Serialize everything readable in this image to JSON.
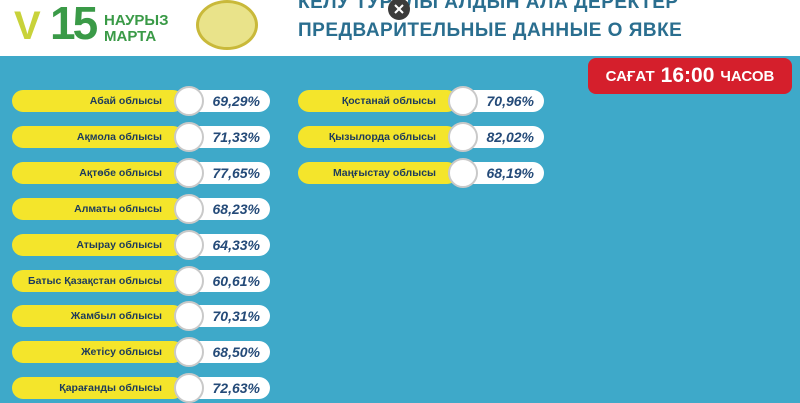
{
  "header": {
    "logo": {
      "number": "15",
      "line1": "НАУРЫЗ",
      "line2": "МАРТА"
    },
    "title_kz": "КЕЛУ ТУРАЛЫ АЛДЫН АЛА ДЕРЕКТЕР",
    "title_ru": "ПРЕДВАРИТЕЛЬНЫЕ ДАННЫЕ О ЯВКЕ"
  },
  "time_badge": {
    "prefix": "САҒАТ",
    "time": "16:00",
    "suffix": "ЧАСОВ"
  },
  "columns": [
    [
      {
        "region": "Абай облысы",
        "turnout": "69,29%"
      },
      {
        "region": "Ақмола облысы",
        "turnout": "71,33%"
      },
      {
        "region": "Ақтөбе облысы",
        "turnout": "77,65%"
      },
      {
        "region": "Алматы облысы",
        "turnout": "68,23%"
      },
      {
        "region": "Атырау облысы",
        "turnout": "64,33%"
      },
      {
        "region": "Батыс Қазақстан облысы",
        "turnout": "60,61%"
      },
      {
        "region": "Жамбыл облысы",
        "turnout": "70,31%"
      },
      {
        "region": "Жетісу облысы",
        "turnout": "68,50%"
      },
      {
        "region": "Қарағанды облысы",
        "turnout": "72,63%"
      }
    ],
    [
      {
        "region": "Қостанай облысы",
        "turnout": "70,96%"
      },
      {
        "region": "Қызылорда облысы",
        "turnout": "82,02%"
      },
      {
        "region": "Маңғыстау облысы",
        "turnout": "68,19%"
      }
    ]
  ]
}
